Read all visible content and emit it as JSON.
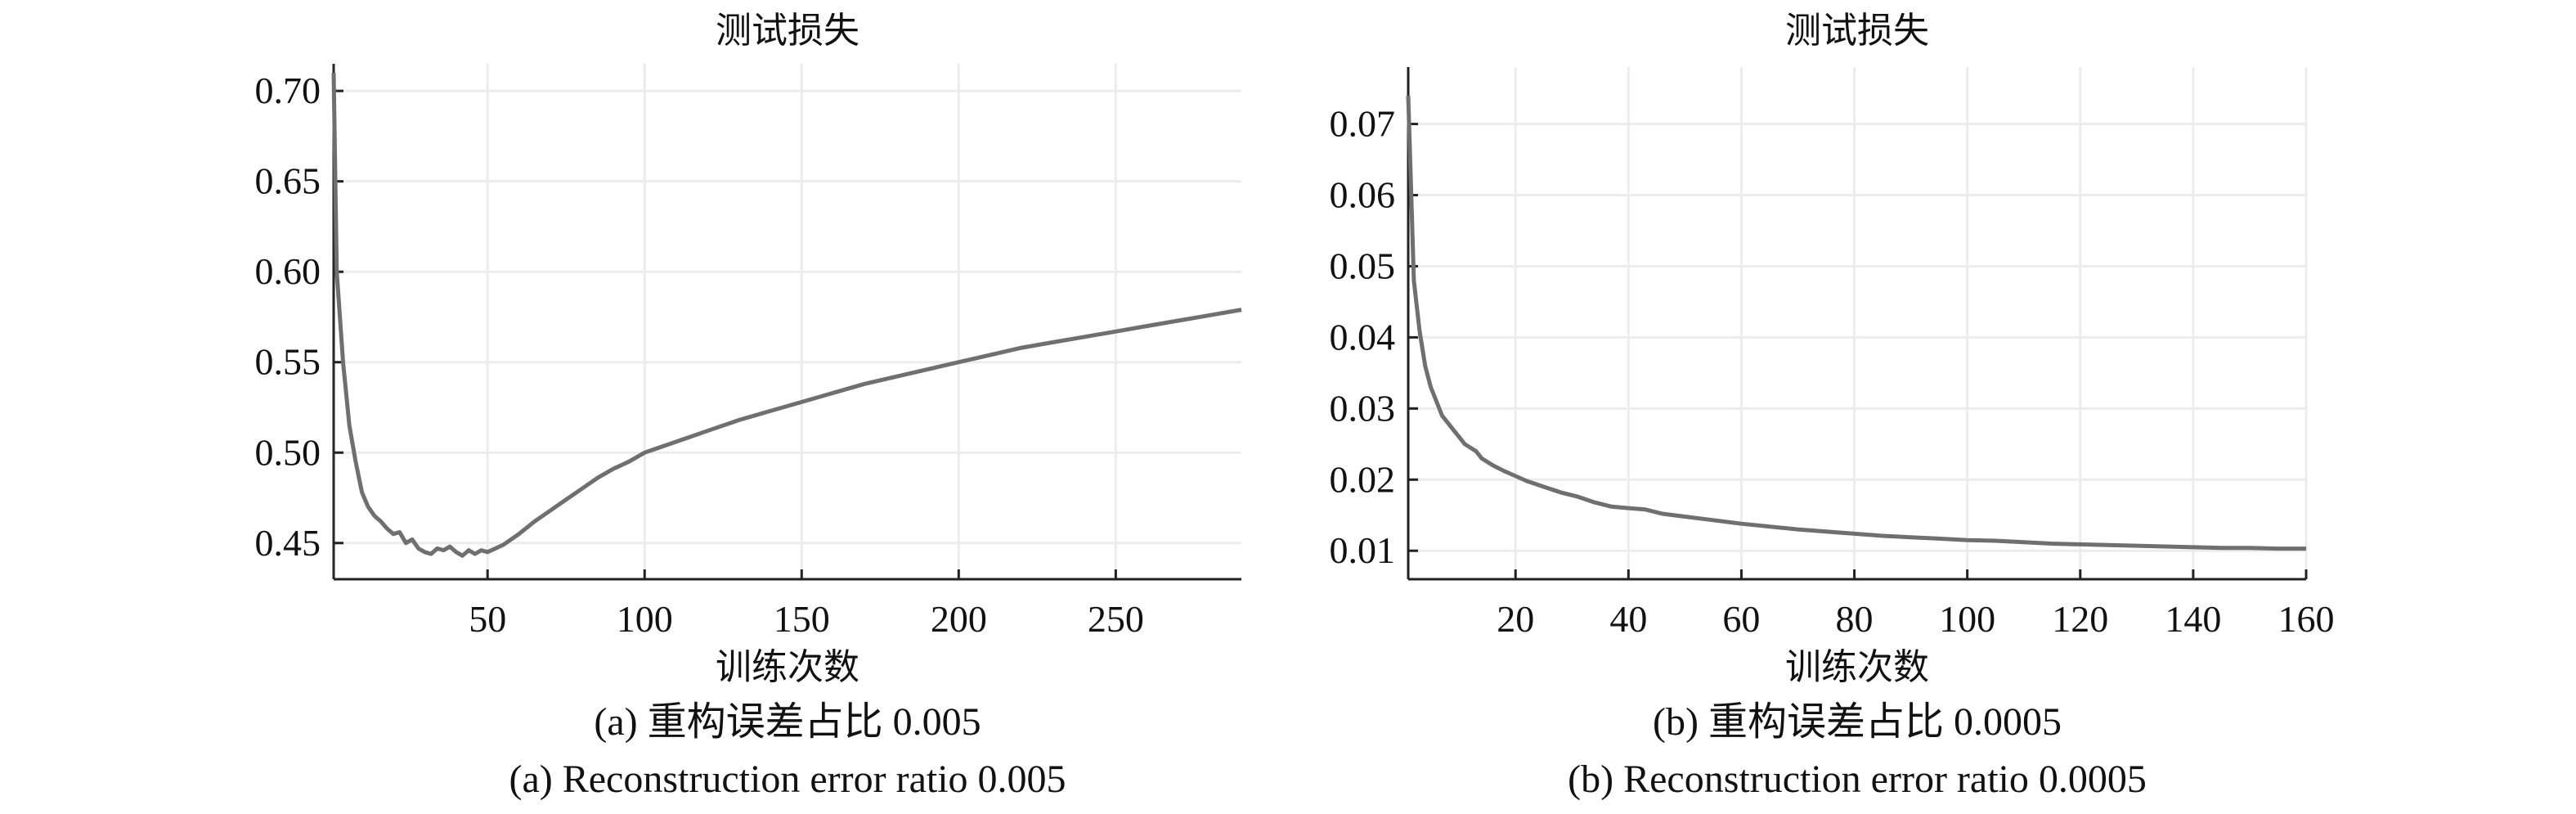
{
  "chart_data": [
    {
      "type": "line",
      "title": "测试损失",
      "xlabel": "训练次数",
      "ylabel": "",
      "xlim": [
        1,
        290
      ],
      "ylim": [
        0.43,
        0.715
      ],
      "grid": true,
      "xticks": [
        50,
        100,
        150,
        200,
        250
      ],
      "yticks": [
        0.45,
        0.5,
        0.55,
        0.6,
        0.65,
        0.7
      ],
      "ytick_labels": [
        "0.45",
        "0.50",
        "0.55",
        "0.60",
        "0.65",
        "0.70"
      ],
      "caption_cn": "(a) 重构误差占比 0.005",
      "caption_en": "(a) Reconstruction error ratio 0.005",
      "series": [
        {
          "x": [
            1,
            2,
            4,
            6,
            8,
            10,
            12,
            14,
            16,
            18,
            20,
            22,
            24,
            26,
            28,
            30,
            32,
            34,
            36,
            38,
            40,
            42,
            44,
            46,
            48,
            50,
            55,
            60,
            65,
            70,
            75,
            80,
            85,
            90,
            95,
            100,
            110,
            120,
            130,
            140,
            150,
            160,
            170,
            180,
            190,
            200,
            210,
            220,
            230,
            240,
            250,
            260,
            270,
            280,
            290
          ],
          "y": [
            0.71,
            0.6,
            0.55,
            0.515,
            0.495,
            0.478,
            0.47,
            0.465,
            0.462,
            0.458,
            0.455,
            0.456,
            0.45,
            0.452,
            0.447,
            0.445,
            0.444,
            0.447,
            0.446,
            0.448,
            0.445,
            0.443,
            0.446,
            0.444,
            0.446,
            0.445,
            0.449,
            0.455,
            0.462,
            0.468,
            0.474,
            0.48,
            0.486,
            0.491,
            0.495,
            0.5,
            0.506,
            0.512,
            0.518,
            0.523,
            0.528,
            0.533,
            0.538,
            0.542,
            0.546,
            0.55,
            0.554,
            0.558,
            0.561,
            0.564,
            0.567,
            0.57,
            0.573,
            0.576,
            0.579
          ]
        }
      ]
    },
    {
      "type": "line",
      "title": "测试损失",
      "xlabel": "训练次数",
      "ylabel": "",
      "xlim": [
        1,
        160
      ],
      "ylim": [
        0.006,
        0.078
      ],
      "grid": true,
      "xticks": [
        20,
        40,
        60,
        80,
        100,
        120,
        140,
        160
      ],
      "yticks": [
        0.01,
        0.02,
        0.03,
        0.04,
        0.05,
        0.06,
        0.07
      ],
      "ytick_labels": [
        "0.01",
        "0.02",
        "0.03",
        "0.04",
        "0.05",
        "0.06",
        "0.07"
      ],
      "caption_cn": "(b) 重构误差占比 0.0005",
      "caption_en": "(b) Reconstruction error ratio 0.0005",
      "series": [
        {
          "x": [
            1,
            2,
            3,
            4,
            5,
            6,
            7,
            8,
            9,
            10,
            11,
            12,
            13,
            14,
            16,
            18,
            20,
            22,
            25,
            28,
            31,
            34,
            37,
            40,
            43,
            46,
            50,
            55,
            60,
            65,
            70,
            75,
            80,
            85,
            90,
            95,
            100,
            105,
            110,
            115,
            120,
            125,
            130,
            135,
            140,
            145,
            150,
            155,
            160
          ],
          "y": [
            0.074,
            0.048,
            0.041,
            0.036,
            0.033,
            0.031,
            0.029,
            0.028,
            0.027,
            0.026,
            0.025,
            0.0245,
            0.024,
            0.023,
            0.022,
            0.0212,
            0.0205,
            0.0198,
            0.019,
            0.0182,
            0.0176,
            0.0168,
            0.0162,
            0.016,
            0.0158,
            0.0152,
            0.0148,
            0.0143,
            0.0138,
            0.0134,
            0.013,
            0.0127,
            0.0124,
            0.0121,
            0.0119,
            0.0117,
            0.0115,
            0.0114,
            0.0112,
            0.011,
            0.0109,
            0.0108,
            0.0107,
            0.0106,
            0.0105,
            0.0104,
            0.0104,
            0.0103,
            0.0103
          ]
        }
      ]
    }
  ]
}
